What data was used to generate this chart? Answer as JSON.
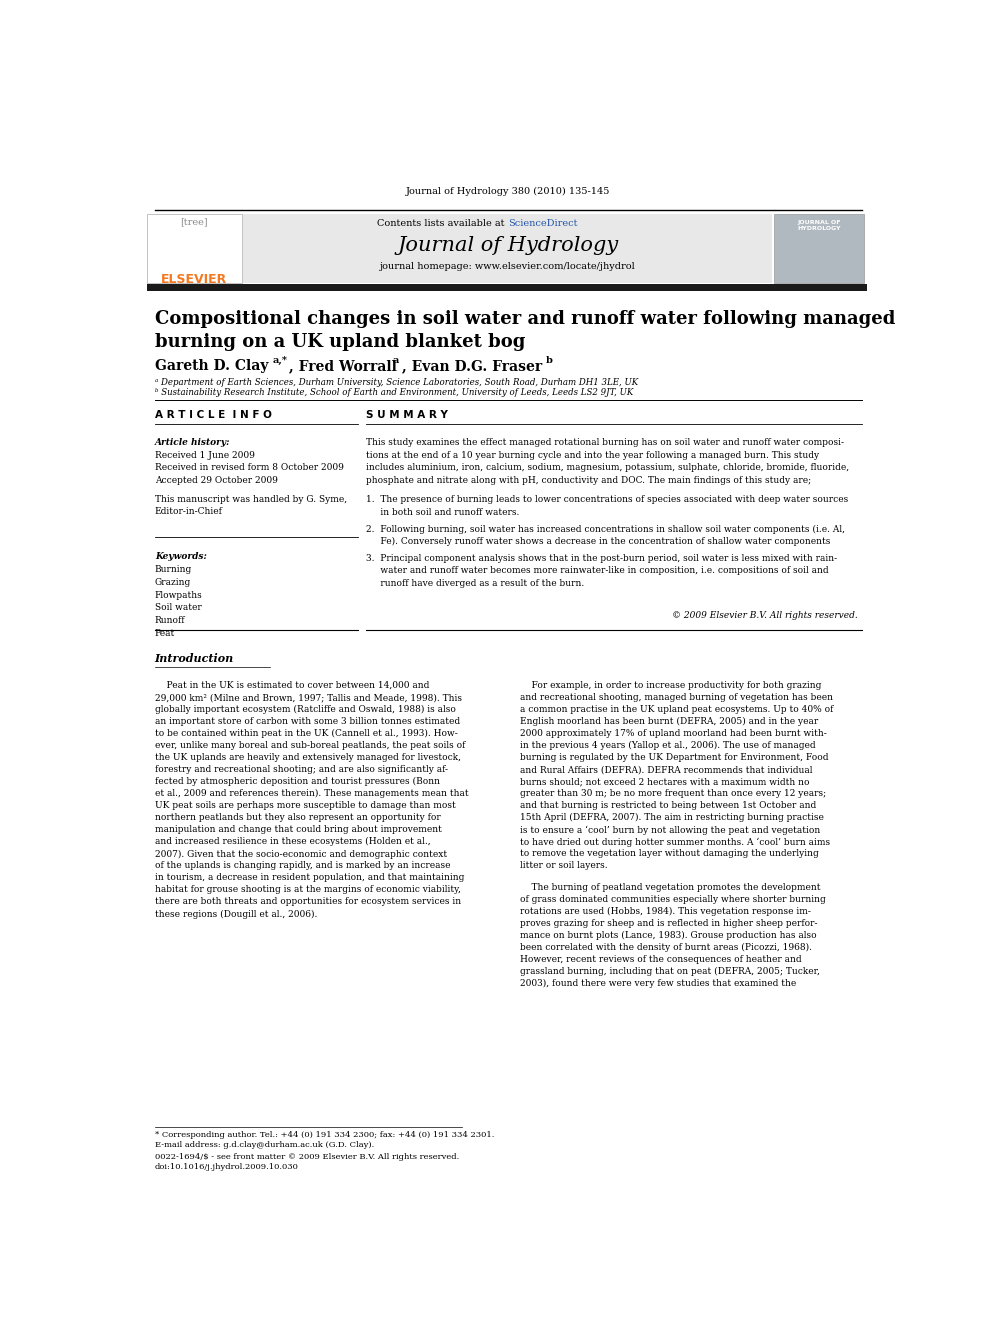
{
  "page_width": 9.92,
  "page_height": 13.23,
  "background_color": "#ffffff",
  "journal_ref": "Journal of Hydrology 380 (2010) 135-145",
  "header_bg": "#e8e8e8",
  "contents_text": "Contents lists available at",
  "sciencedirect_text": "ScienceDirect",
  "journal_title": "Journal of Hydrology",
  "homepage_text": "journal homepage: www.elsevier.com/locate/jhydrol",
  "elsevier_color": "#f47920",
  "thick_bar_color": "#1a1a1a",
  "article_title": "Compositional changes in soil water and runoff water following managed\nburning on a UK upland blanket bog",
  "affil_a": "ᵃ Department of Earth Sciences, Durham University, Science Laboratories, South Road, Durham DH1 3LE, UK",
  "affil_b": "ᵇ Sustainability Research Institute, School of Earth and Environment, University of Leeds, Leeds LS2 9JT, UK",
  "article_info_title": "A R T I C L E  I N F O",
  "summary_title": "S U M M A R Y",
  "article_history_label": "Article history:",
  "received1": "Received 1 June 2009",
  "received2": "Received in revised form 8 October 2009",
  "accepted": "Accepted 29 October 2009",
  "handled_text": "This manuscript was handled by G. Syme,\nEditor-in-Chief",
  "keywords_label": "Keywords:",
  "keywords": [
    "Burning",
    "Grazing",
    "Flowpaths",
    "Soil water",
    "Runoff",
    "Peat"
  ],
  "summary_paragraph": "This study examines the effect managed rotational burning has on soil water and runoff water compositions at the end of a 10 year burning cycle and into the year following a managed burn. This study includes aluminium, iron, calcium, sodium, magnesium, potassium, sulphate, chloride, bromide, fluoride, phosphate and nitrate along with pH, conductivity and DOC. The main findings of this study are;",
  "finding1": "The presence of burning leads to lower concentrations of species associated with deep water sources\n    in both soil and runoff waters.",
  "finding2": "Following burning, soil water has increased concentrations in shallow soil water components (i.e. Al,\n    Fe). Conversely runoff water shows a decrease in the concentration of shallow water components",
  "finding3": "Principal component analysis shows that in the post-burn period, soil water is less mixed with rain-\n    water and runoff water becomes more rainwater-like in composition, i.e. compositions of soil and\n    runoff have diverged as a result of the burn.",
  "copyright": "© 2009 Elsevier B.V. All rights reserved.",
  "footnote_star": "* Corresponding author. Tel.: +44 (0) 191 334 2300; fax: +44 (0) 191 334 2301.",
  "footnote_email": "E-mail address: g.d.clay@durham.ac.uk (G.D. Clay).",
  "issn": "0022-1694/$ - see front matter © 2009 Elsevier B.V. All rights reserved.",
  "doi": "doi:10.1016/j.jhydrol.2009.10.030",
  "intro_left_lines": [
    "    Peat in the UK is estimated to cover between 14,000 and",
    "29,000 km² (Milne and Brown, 1997; Tallis and Meade, 1998). This",
    "globally important ecosystem (Ratcliffe and Oswald, 1988) is also",
    "an important store of carbon with some 3 billion tonnes estimated",
    "to be contained within peat in the UK (Cannell et al., 1993). How-",
    "ever, unlike many boreal and sub-boreal peatlands, the peat soils of",
    "the UK uplands are heavily and extensively managed for livestock,",
    "forestry and recreational shooting; and are also significantly af-",
    "fected by atmospheric deposition and tourist pressures (Bonn",
    "et al., 2009 and references therein). These managements mean that",
    "UK peat soils are perhaps more susceptible to damage than most",
    "northern peatlands but they also represent an opportunity for",
    "manipulation and change that could bring about improvement",
    "and increased resilience in these ecosystems (Holden et al.,",
    "2007). Given that the socio-economic and demographic context",
    "of the uplands is changing rapidly, and is marked by an increase",
    "in tourism, a decrease in resident population, and that maintaining",
    "habitat for grouse shooting is at the margins of economic viability,",
    "there are both threats and opportunities for ecosystem services in",
    "these regions (Dougill et al., 2006)."
  ],
  "intro_right_lines1": [
    "    For example, in order to increase productivity for both grazing",
    "and recreational shooting, managed burning of vegetation has been",
    "a common practise in the UK upland peat ecosystems. Up to 40% of",
    "English moorland has been burnt (DEFRA, 2005) and in the year",
    "2000 approximately 17% of upland moorland had been burnt with-",
    "in the previous 4 years (Yallop et al., 2006). The use of managed",
    "burning is regulated by the UK Department for Environment, Food",
    "and Rural Affairs (DEFRA). DEFRA recommends that individual",
    "burns should; not exceed 2 hectares with a maximum width no",
    "greater than 30 m; be no more frequent than once every 12 years;",
    "and that burning is restricted to being between 1st October and",
    "15th April (DEFRA, 2007). The aim in restricting burning practise",
    "is to ensure a ‘cool’ burn by not allowing the peat and vegetation",
    "to have dried out during hotter summer months. A ‘cool’ burn aims",
    "to remove the vegetation layer without damaging the underlying",
    "litter or soil layers."
  ],
  "intro_right_lines2": [
    "    The burning of peatland vegetation promotes the development",
    "of grass dominated communities especially where shorter burning",
    "rotations are used (Hobbs, 1984). This vegetation response im-",
    "proves grazing for sheep and is reflected in higher sheep perfor-",
    "mance on burnt plots (Lance, 1983). Grouse production has also",
    "been correlated with the density of burnt areas (Picozzi, 1968).",
    "However, recent reviews of the consequences of heather and",
    "grassland burning, including that on peat (DEFRA, 2005; Tucker,",
    "2003), found there were very few studies that examined the"
  ]
}
